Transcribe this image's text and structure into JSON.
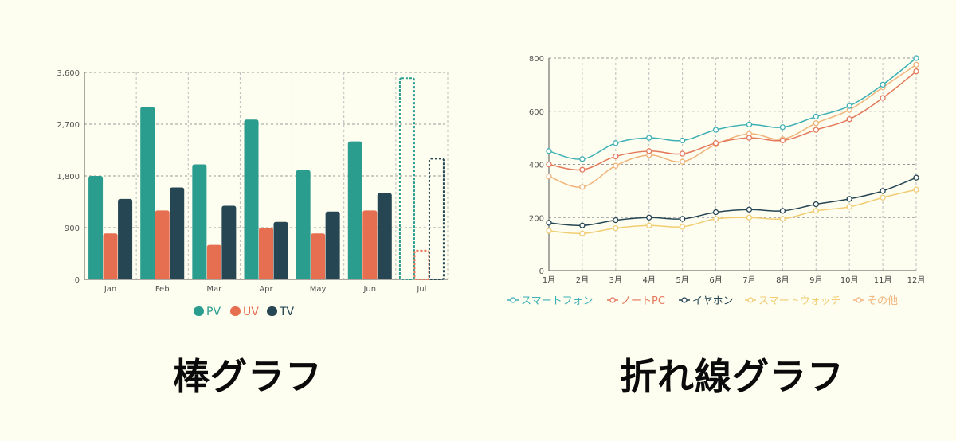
{
  "captions": {
    "bar": "棒グラフ",
    "line": "折れ線グラフ"
  },
  "chart_data": [
    {
      "type": "bar",
      "categories": [
        "Jan",
        "Feb",
        "Mar",
        "Apr",
        "May",
        "Jun",
        "Jul"
      ],
      "ylim": [
        0,
        3600
      ],
      "yticks": [
        0,
        900,
        1800,
        2700,
        3600
      ],
      "ytick_labels": [
        "0",
        "900",
        "1,800",
        "2,700",
        "3,600"
      ],
      "grid": true,
      "legend_position": "bottom",
      "series": [
        {
          "name": "PV",
          "color": "#2a9d8f",
          "values": [
            1800,
            3000,
            2000,
            2780,
            1900,
            2400,
            3500
          ]
        },
        {
          "name": "UV",
          "color": "#e76f51",
          "values": [
            800,
            1200,
            600,
            900,
            800,
            1200,
            500
          ]
        },
        {
          "name": "TV",
          "color": "#264653",
          "values": [
            1400,
            1600,
            1280,
            1000,
            1180,
            1500,
            2100
          ]
        }
      ],
      "projected_categories": [
        "Jul"
      ]
    },
    {
      "type": "line",
      "categories": [
        "1月",
        "2月",
        "3月",
        "4月",
        "5月",
        "6月",
        "7月",
        "8月",
        "9月",
        "10月",
        "11月",
        "12月"
      ],
      "ylim": [
        0,
        800
      ],
      "yticks": [
        0,
        200,
        400,
        600,
        800
      ],
      "grid": true,
      "legend_position": "bottom",
      "series": [
        {
          "name": "スマートフォン",
          "color": "#3eb0b4",
          "values": [
            450,
            420,
            480,
            500,
            490,
            530,
            550,
            540,
            580,
            620,
            700,
            800
          ]
        },
        {
          "name": "ノートPC",
          "color": "#e4795a",
          "values": [
            400,
            380,
            430,
            450,
            440,
            480,
            500,
            490,
            530,
            570,
            650,
            750
          ]
        },
        {
          "name": "イヤホン",
          "color": "#264653",
          "values": [
            180,
            170,
            190,
            200,
            195,
            220,
            230,
            225,
            250,
            270,
            300,
            350
          ]
        },
        {
          "name": "スマートウォッチ",
          "color": "#f1cd72",
          "values": [
            150,
            140,
            160,
            170,
            165,
            195,
            200,
            195,
            225,
            240,
            275,
            305
          ]
        },
        {
          "name": "その他",
          "color": "#f0b47a",
          "values": [
            355,
            315,
            395,
            435,
            410,
            475,
            515,
            495,
            555,
            605,
            690,
            775
          ]
        }
      ]
    }
  ]
}
